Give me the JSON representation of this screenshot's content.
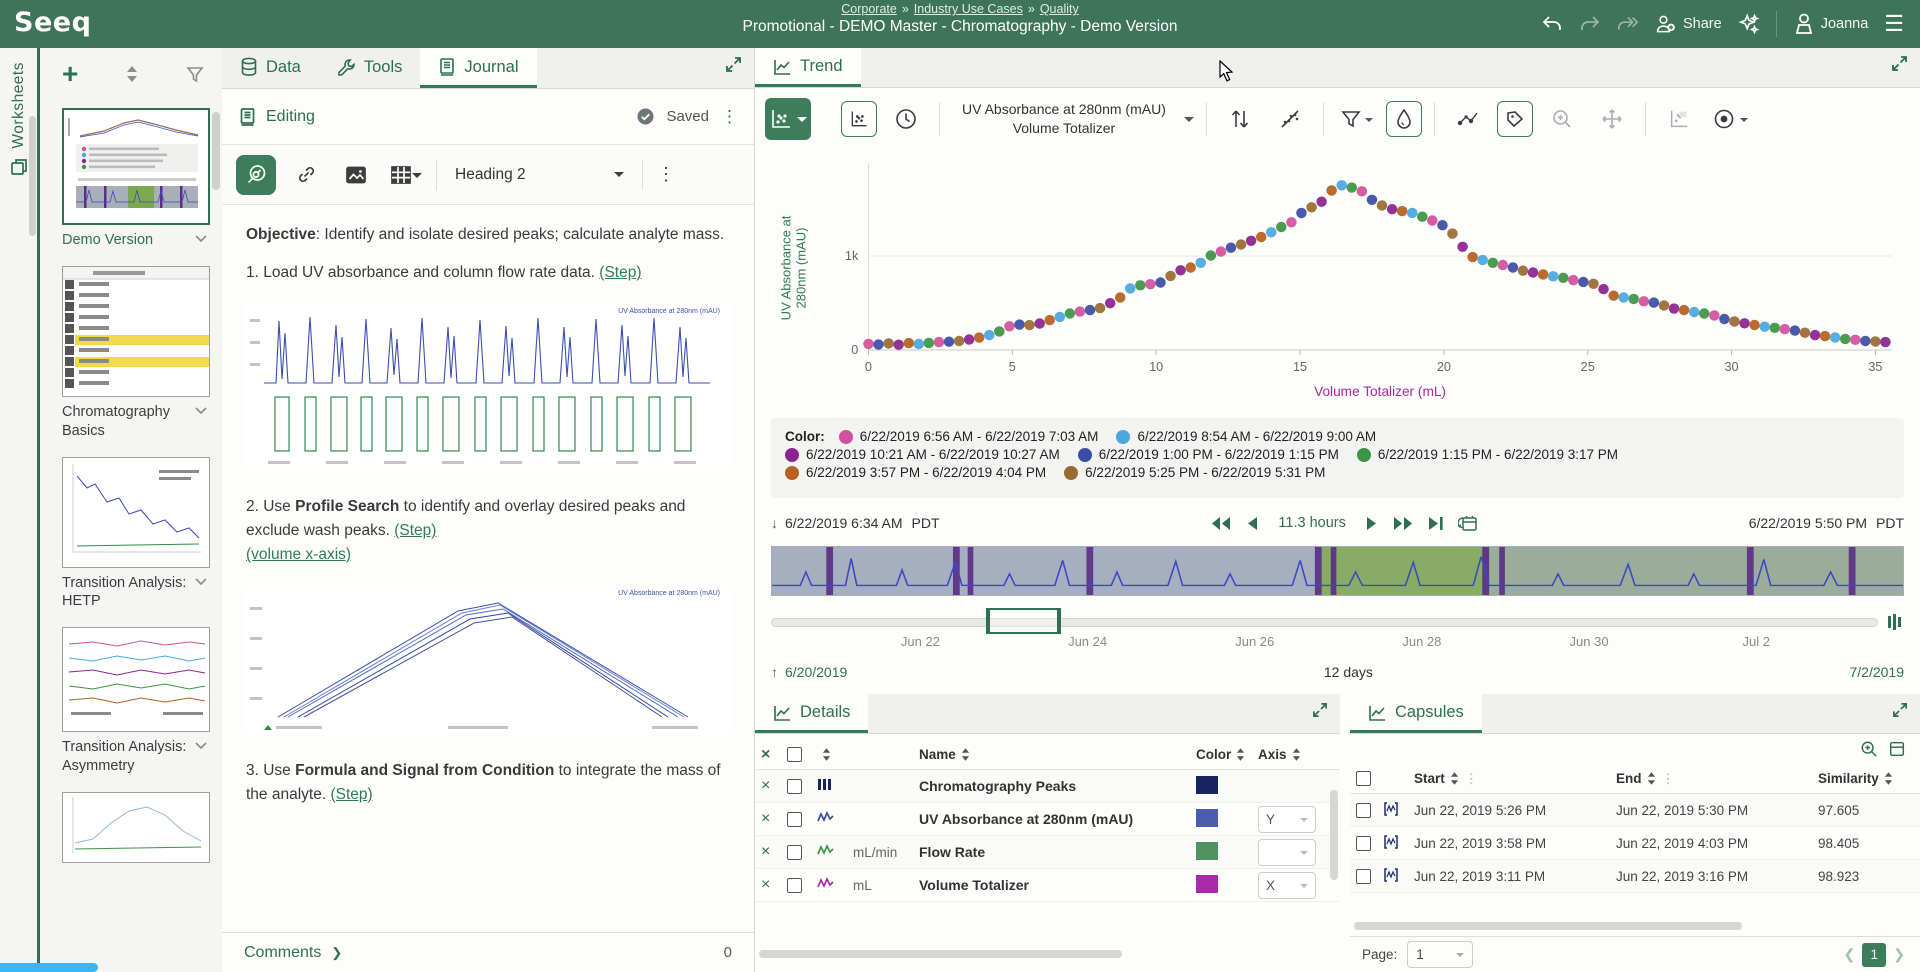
{
  "topbar": {
    "logo": "Seeq",
    "breadcrumb": [
      "Corporate",
      "Industry Use Cases",
      "Quality"
    ],
    "breadcrumb_separator": "»",
    "title": "Promotional - DEMO Master - Chromatography - Demo Version",
    "share_label": "Share",
    "user_name": "Joanna"
  },
  "worksheets": {
    "vertical_label": "Worksheets",
    "items": [
      {
        "label": "Demo Version",
        "type": "demo",
        "active": true
      },
      {
        "label": "Chromatography Basics",
        "type": "table",
        "active": false
      },
      {
        "label": "Transition Analysis: HETP",
        "type": "hetp",
        "active": false
      },
      {
        "label": "Transition Analysis: Asymmetry",
        "type": "asym",
        "active": false
      },
      {
        "label": "",
        "type": "partial",
        "active": false
      }
    ]
  },
  "journal": {
    "tabs": [
      "Data",
      "Tools",
      "Journal"
    ],
    "active_tab": "Journal",
    "status_label": "Editing",
    "saved_label": "Saved",
    "heading_value": "Heading 2",
    "comments_label": "Comments",
    "comments_count": "0",
    "content": {
      "objective_label": "Objective",
      "objective_rest": ": Identify and isolate desired peaks; calculate analyte mass.",
      "step1_text": "1. Load UV absorbance and column flow rate data. ",
      "step1_link": "(Step)",
      "step2_prefix": "2. Use ",
      "step2_bold": "Profile Search",
      "step2_rest": " to identify  and overlay desired peaks and exclude wash peaks. ",
      "step2_link": "(Step)",
      "volume_link": "(volume x-axis)",
      "step3_prefix": "3. Use ",
      "step3_bold": "Formula and Signal from Condition",
      "step3_rest": " to integrate the mass of the analyte. ",
      "step3_link": "(Step)",
      "mini_chart_label": "UV Absorbance at 280nm (mAU)"
    }
  },
  "trend": {
    "tab_label": "Trend",
    "signal_line1": "UV Absorbance at 280nm (mAU)",
    "signal_line2": "Volume Totalizer"
  },
  "chart_data": {
    "type": "scatter",
    "xlabel": "Volume Totalizer (mL)",
    "ylabel_line1": "UV Absorbance at",
    "ylabel_line2": "280nm (mAU)",
    "xlim": [
      0,
      36
    ],
    "ylim": [
      0,
      1800
    ],
    "xticks": [
      0,
      5,
      10,
      15,
      20,
      25,
      30,
      35
    ],
    "yticks": [
      {
        "label": "0",
        "value": 0
      },
      {
        "label": "1k",
        "value": 1000
      }
    ],
    "grid": "y-gridline-at-1k",
    "legend_position": "below",
    "point_colors": [
      "#d1519c",
      "#4aa7e0",
      "#8b2490",
      "#3c4da5",
      "#3d9346",
      "#b7601f",
      "#9a6a33"
    ],
    "points": [
      [
        0,
        65
      ],
      [
        0.35,
        58
      ],
      [
        0.7,
        70
      ],
      [
        1.05,
        56
      ],
      [
        1.4,
        73
      ],
      [
        1.75,
        64
      ],
      [
        2.1,
        76
      ],
      [
        2.45,
        84
      ],
      [
        2.8,
        88
      ],
      [
        3.15,
        96
      ],
      [
        3.5,
        112
      ],
      [
        3.85,
        132
      ],
      [
        4.2,
        158
      ],
      [
        4.55,
        198
      ],
      [
        4.9,
        252
      ],
      [
        5.25,
        270
      ],
      [
        5.6,
        265
      ],
      [
        5.95,
        282
      ],
      [
        6.3,
        318
      ],
      [
        6.65,
        352
      ],
      [
        7,
        388
      ],
      [
        7.35,
        408
      ],
      [
        7.7,
        424
      ],
      [
        8.05,
        446
      ],
      [
        8.4,
        498
      ],
      [
        8.75,
        558
      ],
      [
        9.1,
        655
      ],
      [
        9.45,
        688
      ],
      [
        9.8,
        700
      ],
      [
        10.15,
        718
      ],
      [
        10.5,
        788
      ],
      [
        10.85,
        848
      ],
      [
        11.2,
        878
      ],
      [
        11.55,
        928
      ],
      [
        11.9,
        1005
      ],
      [
        12.25,
        1048
      ],
      [
        12.6,
        1088
      ],
      [
        12.95,
        1122
      ],
      [
        13.3,
        1162
      ],
      [
        13.65,
        1202
      ],
      [
        14,
        1252
      ],
      [
        14.35,
        1308
      ],
      [
        14.7,
        1358
      ],
      [
        15.05,
        1458
      ],
      [
        15.4,
        1518
      ],
      [
        15.75,
        1578
      ],
      [
        16.1,
        1698
      ],
      [
        16.45,
        1752
      ],
      [
        16.8,
        1728
      ],
      [
        17.15,
        1688
      ],
      [
        17.5,
        1598
      ],
      [
        17.85,
        1538
      ],
      [
        18.2,
        1498
      ],
      [
        18.55,
        1478
      ],
      [
        18.9,
        1458
      ],
      [
        19.25,
        1418
      ],
      [
        19.6,
        1378
      ],
      [
        19.95,
        1328
      ],
      [
        20.3,
        1238
      ],
      [
        20.65,
        1098
      ],
      [
        21,
        988
      ],
      [
        21.35,
        958
      ],
      [
        21.7,
        928
      ],
      [
        22.05,
        904
      ],
      [
        22.4,
        878
      ],
      [
        22.75,
        844
      ],
      [
        23.1,
        824
      ],
      [
        23.45,
        804
      ],
      [
        23.8,
        784
      ],
      [
        24.15,
        768
      ],
      [
        24.5,
        744
      ],
      [
        24.85,
        724
      ],
      [
        25.2,
        704
      ],
      [
        25.55,
        648
      ],
      [
        25.9,
        578
      ],
      [
        26.25,
        558
      ],
      [
        26.6,
        544
      ],
      [
        26.95,
        518
      ],
      [
        27.3,
        504
      ],
      [
        27.65,
        474
      ],
      [
        28,
        440
      ],
      [
        28.35,
        424
      ],
      [
        28.7,
        404
      ],
      [
        29.05,
        388
      ],
      [
        29.4,
        368
      ],
      [
        29.75,
        330
      ],
      [
        30.1,
        304
      ],
      [
        30.45,
        284
      ],
      [
        30.8,
        266
      ],
      [
        31.15,
        248
      ],
      [
        31.5,
        236
      ],
      [
        31.85,
        222
      ],
      [
        32.2,
        206
      ],
      [
        32.55,
        184
      ],
      [
        32.9,
        158
      ],
      [
        33.25,
        148
      ],
      [
        33.6,
        134
      ],
      [
        33.95,
        118
      ],
      [
        34.3,
        108
      ],
      [
        34.65,
        96
      ],
      [
        35,
        90
      ],
      [
        35.35,
        84
      ]
    ]
  },
  "legend": {
    "label": "Color:",
    "rows": [
      2,
      3,
      2
    ],
    "entries": [
      {
        "color": "#d1519c",
        "label": "6/22/2019 6:56 AM - 6/22/2019 7:03 AM"
      },
      {
        "color": "#4aa7e0",
        "label": "6/22/2019 8:54 AM - 6/22/2019 9:00 AM"
      },
      {
        "color": "#8b2490",
        "label": "6/22/2019 10:21 AM - 6/22/2019 10:27 AM"
      },
      {
        "color": "#3c4da5",
        "label": "6/22/2019 1:00 PM - 6/22/2019 1:15 PM"
      },
      {
        "color": "#3d9346",
        "label": "6/22/2019 1:15 PM - 6/22/2019 3:17 PM"
      },
      {
        "color": "#b7601f",
        "label": "6/22/2019 3:57 PM - 6/22/2019 4:04 PM"
      },
      {
        "color": "#9a6a33",
        "label": "6/22/2019 5:25 PM - 6/22/2019 5:31 PM"
      }
    ]
  },
  "timebar": {
    "start_label": "6/22/2019 6:34 AM",
    "start_tz": "PDT",
    "duration_label": "11.3 hours",
    "end_label": "6/22/2019 5:50 PM",
    "end_tz": "PDT"
  },
  "rangebar": {
    "axis_ticks": [
      "Jun 22",
      "Jun 24",
      "Jun 26",
      "Jun 28",
      "Jun 30",
      "Jul 2"
    ],
    "range_start": "6/20/2019",
    "range_duration": "12 days",
    "range_end": "7/2/2019"
  },
  "details": {
    "title": "Details",
    "columns": {
      "name": "Name",
      "color": "Color",
      "axis": "Axis"
    },
    "rows": [
      {
        "unit": "",
        "name": "Chromatography Peaks",
        "color": "#16255f",
        "icon": "capsule-set",
        "icon_color": "#16255f",
        "axis": null
      },
      {
        "unit": "",
        "name": "UV Absorbance at 280nm (mAU)",
        "color": "#4c5cae",
        "icon": "signal",
        "icon_color": "#3c4da5",
        "axis": "Y"
      },
      {
        "unit": "mL/min",
        "name": "Flow Rate",
        "color": "#4e9361",
        "icon": "signal",
        "icon_color": "#3d9346",
        "axis": ""
      },
      {
        "unit": "mL",
        "name": "Volume Totalizer",
        "color": "#aa2baa",
        "icon": "signal",
        "icon_color": "#aa2baa",
        "axis": "X"
      }
    ]
  },
  "capsules": {
    "title": "Capsules",
    "columns": {
      "start": "Start",
      "end": "End",
      "similarity": "Similarity"
    },
    "rows": [
      {
        "start": "Jun 22, 2019 5:26 PM",
        "end": "Jun 22, 2019 5:30 PM",
        "similarity": "97.605"
      },
      {
        "start": "Jun 22, 2019 3:58 PM",
        "end": "Jun 22, 2019 4:03 PM",
        "similarity": "98.405"
      },
      {
        "start": "Jun 22, 2019 3:11 PM",
        "end": "Jun 22, 2019 3:16 PM",
        "similarity": "98.923"
      }
    ],
    "page_label": "Page:",
    "page_value": "1",
    "pagination_current": "1"
  },
  "icons": {
    "kebab": "⋮",
    "hamburger": "☰",
    "chevron_right": "❯",
    "close": "×",
    "plus": "+"
  }
}
